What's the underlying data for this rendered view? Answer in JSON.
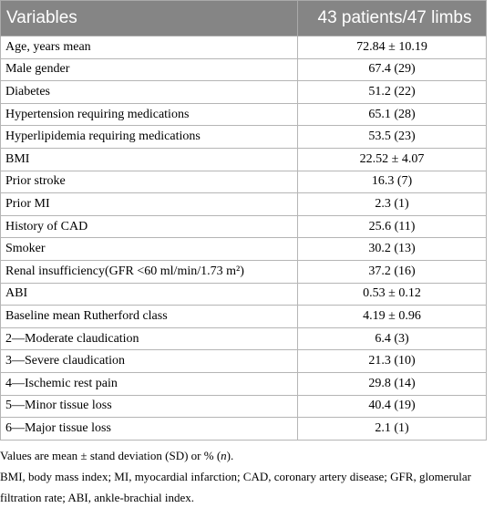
{
  "table": {
    "header": [
      "Variables",
      "43 patients/47 limbs"
    ],
    "rows": [
      [
        "Age, years mean",
        "72.84 ± 10.19"
      ],
      [
        "Male gender",
        "67.4 (29)"
      ],
      [
        "Diabetes",
        "51.2 (22)"
      ],
      [
        "Hypertension requiring medications",
        "65.1 (28)"
      ],
      [
        "Hyperlipidemia requiring medications",
        "53.5 (23)"
      ],
      [
        "BMI",
        "22.52 ± 4.07"
      ],
      [
        "Prior stroke",
        "16.3 (7)"
      ],
      [
        "Prior MI",
        "2.3 (1)"
      ],
      [
        "History of CAD",
        "25.6 (11)"
      ],
      [
        "Smoker",
        "30.2 (13)"
      ],
      [
        "Renal insufficiency(GFR <60 ml/min/1.73 m²)",
        "37.2 (16)"
      ],
      [
        "ABI",
        "0.53 ± 0.12"
      ],
      [
        "Baseline mean Rutherford class",
        "4.19 ± 0.96"
      ],
      [
        "2—Moderate claudication",
        "6.4 (3)"
      ],
      [
        "3—Severe claudication",
        "21.3 (10)"
      ],
      [
        "4—Ischemic rest pain",
        "29.8 (14)"
      ],
      [
        "5—Minor tissue loss",
        "40.4 (19)"
      ],
      [
        "6—Major tissue loss",
        "2.1 (1)"
      ]
    ]
  },
  "footnotes": [
    [
      "Values are mean ± stand deviation (SD) or % (",
      "n",
      ")."
    ],
    "BMI, body mass index; MI, myocardial infarction; CAD, coronary artery disease; GFR, glomerular filtration rate; ABI, ankle-brachial index."
  ]
}
